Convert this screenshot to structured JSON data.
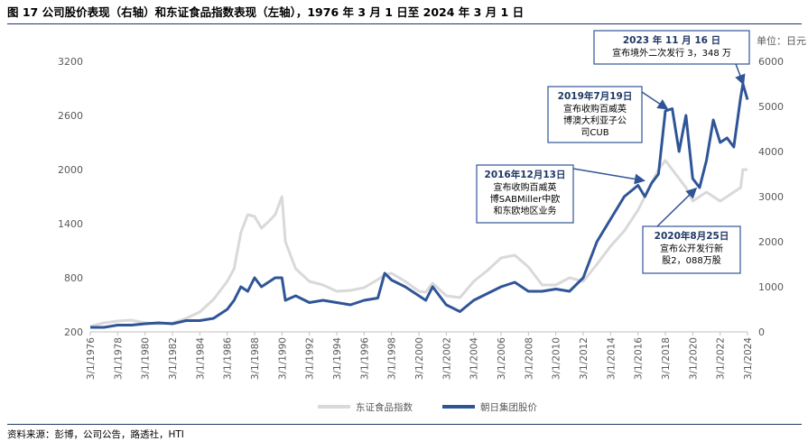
{
  "header": {
    "title": "图 17  公司股价表现（右轴）和东证食品指数表现（左轴），1976 年 3 月 1 日至 2024 年 3 月 1 日"
  },
  "footer": {
    "source": "资料来源：彭博，公司公告，路透社，HTI"
  },
  "colors": {
    "index_line": "#d9d9d9",
    "stock_line": "#2f5597",
    "annotation_border": "#2f5597",
    "annotation_title": "#1f3864"
  },
  "chart_data": {
    "type": "line",
    "unit_label": "单位：日元",
    "x": [
      "1976-03",
      "1977-03",
      "1978-03",
      "1979-03",
      "1980-03",
      "1981-03",
      "1982-03",
      "1983-03",
      "1984-03",
      "1985-03",
      "1986-03",
      "1986-09",
      "1987-03",
      "1987-09",
      "1988-03",
      "1988-09",
      "1989-03",
      "1989-09",
      "1990-03",
      "1990-06",
      "1991-03",
      "1992-03",
      "1993-03",
      "1994-03",
      "1995-03",
      "1996-03",
      "1997-03",
      "1997-09",
      "1998-03",
      "1999-03",
      "2000-03",
      "2000-09",
      "2001-03",
      "2002-03",
      "2003-03",
      "2004-03",
      "2005-03",
      "2006-03",
      "2007-03",
      "2008-03",
      "2009-03",
      "2010-03",
      "2011-03",
      "2012-03",
      "2013-03",
      "2014-03",
      "2015-03",
      "2016-03",
      "2016-09",
      "2017-03",
      "2017-09",
      "2018-03",
      "2018-09",
      "2019-03",
      "2019-09",
      "2020-03",
      "2020-09",
      "2021-03",
      "2021-09",
      "2022-03",
      "2022-09",
      "2023-03",
      "2023-09",
      "2023-11",
      "2024-03"
    ],
    "x_ticks": [
      "3/1/1976",
      "3/1/1978",
      "3/1/1980",
      "3/1/1982",
      "3/1/1984",
      "3/1/1986",
      "3/1/1988",
      "3/1/1990",
      "3/1/1992",
      "3/1/1994",
      "3/1/1996",
      "3/1/1998",
      "3/1/2000",
      "3/1/2002",
      "3/1/2004",
      "3/1/2006",
      "3/1/2008",
      "3/1/2010",
      "3/1/2012",
      "3/1/2014",
      "3/1/2016",
      "3/1/2018",
      "3/1/2020",
      "3/1/2022",
      "3/1/2024"
    ],
    "left_axis": {
      "ylim": [
        200,
        3200
      ],
      "ticks": [
        200,
        800,
        1400,
        2000,
        2600,
        3200
      ]
    },
    "right_axis": {
      "ylim": [
        0,
        6000
      ],
      "ticks": [
        0,
        1000,
        2000,
        3000,
        4000,
        5000,
        6000
      ]
    },
    "series": [
      {
        "name": "东证食品指数",
        "axis": "left",
        "values": [
          260,
          300,
          320,
          330,
          300,
          290,
          300,
          350,
          420,
          560,
          760,
          900,
          1300,
          1500,
          1480,
          1350,
          1420,
          1500,
          1700,
          1200,
          900,
          760,
          720,
          650,
          660,
          690,
          780,
          830,
          850,
          760,
          650,
          640,
          740,
          600,
          580,
          760,
          880,
          1020,
          1050,
          920,
          720,
          720,
          800,
          760,
          950,
          1150,
          1320,
          1550,
          1700,
          1850,
          2000,
          2100,
          2000,
          1900,
          1800,
          1650,
          1700,
          1750,
          1700,
          1650,
          1700,
          1750,
          1800,
          2000,
          2000
        ]
      },
      {
        "name": "朝日集团股价",
        "axis": "right",
        "values": [
          100,
          100,
          150,
          150,
          180,
          200,
          180,
          250,
          250,
          300,
          500,
          700,
          1000,
          900,
          1200,
          1000,
          1100,
          1200,
          1200,
          700,
          800,
          650,
          700,
          650,
          600,
          700,
          750,
          1300,
          1150,
          1000,
          800,
          700,
          1000,
          600,
          450,
          700,
          850,
          1000,
          1100,
          900,
          900,
          950,
          900,
          1200,
          2000,
          2500,
          3000,
          3250,
          3000,
          3300,
          3500,
          4900,
          4950,
          4000,
          4800,
          3400,
          3200,
          3800,
          4700,
          4200,
          4300,
          4100,
          5200,
          5500,
          5150
        ]
      }
    ],
    "legend_position": "bottom"
  },
  "annotations": [
    {
      "title": "2023 年 11 月 16 日",
      "lines": [
        "宣布境外二次发行 3，348 万"
      ]
    },
    {
      "title": "2019年7月19日",
      "lines": [
        "宣布收购百威英",
        "博澳大利亚子公",
        "司CUB"
      ]
    },
    {
      "title": "2016年12月13日",
      "lines": [
        "宣布收购百威英",
        "博SABMiller中欧",
        "和东欧地区业务"
      ]
    },
    {
      "title": "2020年8月25日",
      "lines": [
        "宣布公开发行新",
        "股2，088万股"
      ]
    }
  ]
}
